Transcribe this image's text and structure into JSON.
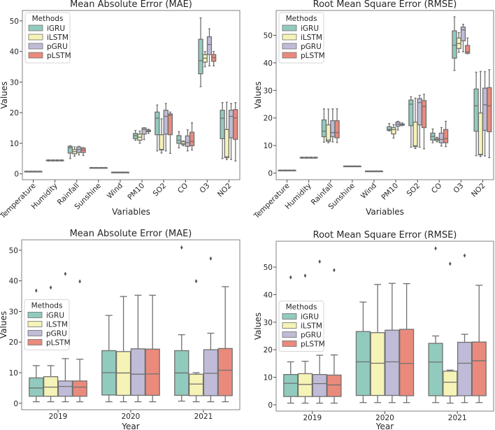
{
  "methods": [
    "iGRU",
    "iLSTM",
    "pGRU",
    "pLSTM"
  ],
  "colors": {
    "iGRU": "#91cbbe",
    "iLSTM": "#f5f3b6",
    "pGRU": "#c0bcd7",
    "pLSTM": "#ea8a7c",
    "line": "#707070",
    "frame": "#808080"
  },
  "chart_data": [
    {
      "type": "box",
      "title": "Mean Absolute Error (MAE)",
      "xlabel": "Variables",
      "ylabel": "Values",
      "ylim": [
        -1.9,
        53.4
      ],
      "yticks": [
        0,
        10,
        20,
        30,
        40,
        50
      ],
      "legend": {
        "title": "Methods",
        "placement": "top-left"
      },
      "rotate_xticks": true,
      "categories": [
        "Temperature",
        "Humidity",
        "Rainfall",
        "Sunshine",
        "Wind",
        "PM10",
        "SO2",
        "CO",
        "O3",
        "NO2"
      ],
      "boxes_format": "[whisker_low, q1, median, q3, whisker_high]",
      "series": [
        {
          "name": "iGRU",
          "boxes": [
            [
              0.7,
              0.75,
              0.8,
              0.85,
              0.9
            ],
            [
              4.2,
              4.3,
              4.4,
              4.5,
              4.6
            ],
            [
              5,
              6.8,
              8.5,
              9,
              9.2
            ],
            [
              1.9,
              1.95,
              2,
              2.05,
              2.1
            ],
            [
              0.4,
              0.45,
              0.5,
              0.55,
              0.6
            ],
            [
              11,
              11.5,
              12.5,
              13.2,
              14.2
            ],
            [
              7.5,
              12.8,
              18.2,
              20.2,
              22.5
            ],
            [
              8.5,
              10,
              11,
              12.5,
              13.8
            ],
            [
              28.5,
              32.7,
              37,
              44,
              51
            ],
            [
              5,
              11.5,
              18.2,
              20.8,
              23.3
            ]
          ]
        },
        {
          "name": "iLSTM",
          "boxes": [
            [
              0.7,
              0.75,
              0.8,
              0.85,
              0.9
            ],
            [
              4.2,
              4.3,
              4.4,
              4.5,
              4.6
            ],
            [
              5.8,
              6.6,
              7.3,
              8,
              8.8
            ],
            [
              1.9,
              1.95,
              2,
              2.05,
              2.1
            ],
            [
              0.4,
              0.45,
              0.5,
              0.55,
              0.6
            ],
            [
              10,
              11,
              12,
              13,
              14
            ],
            [
              6.8,
              7.8,
              8,
              12.8,
              18
            ],
            [
              9.2,
              9.6,
              10,
              10.6,
              10.8
            ],
            [
              35,
              36.5,
              37.8,
              39,
              40
            ],
            [
              4.7,
              5.3,
              5.6,
              14.5,
              23.4
            ]
          ]
        },
        {
          "name": "pGRU",
          "boxes": [
            [
              0.7,
              0.75,
              0.8,
              0.85,
              0.9
            ],
            [
              4.2,
              4.3,
              4.4,
              4.5,
              4.6
            ],
            [
              6.2,
              7,
              8,
              8.8,
              9
            ],
            [
              1.9,
              1.95,
              2,
              2.05,
              2.1
            ],
            [
              0.4,
              0.45,
              0.5,
              0.55,
              0.6
            ],
            [
              11.2,
              13,
              14.5,
              15,
              15.1
            ],
            [
              7.5,
              13,
              18.8,
              20.8,
              23
            ],
            [
              7.5,
              9,
              10.2,
              12.4,
              14.4
            ],
            [
              35.3,
              39,
              42.3,
              44.8,
              47.4
            ],
            [
              4.7,
              11.8,
              18.8,
              20.8,
              23
            ]
          ]
        },
        {
          "name": "pLSTM",
          "boxes": [
            [
              0.7,
              0.75,
              0.8,
              0.85,
              0.9
            ],
            [
              4.2,
              4.3,
              4.4,
              4.5,
              4.6
            ],
            [
              6,
              7,
              7.8,
              8.4,
              8.6
            ],
            [
              1.9,
              1.95,
              2,
              2.05,
              2.1
            ],
            [
              0.4,
              0.45,
              0.5,
              0.55,
              0.6
            ],
            [
              13.2,
              13.8,
              14,
              14.3,
              14.6
            ],
            [
              6.7,
              12.8,
              19.2,
              19.6,
              20.2
            ],
            [
              7.8,
              9.2,
              10.6,
              13.6,
              16.7
            ],
            [
              35.3,
              36.8,
              38,
              39,
              40
            ],
            [
              4.2,
              11.3,
              18.3,
              21,
              23.3
            ]
          ]
        }
      ]
    },
    {
      "type": "box",
      "title": "Root Mean Square Error (RMSE)",
      "xlabel": "Variables",
      "ylabel": "Values",
      "ylim": [
        -2.4,
        59
      ],
      "yticks": [
        0,
        10,
        20,
        30,
        40,
        50
      ],
      "legend": {
        "title": "Methods",
        "placement": "top-left"
      },
      "rotate_xticks": true,
      "categories": [
        "Temperature",
        "Humidity",
        "Rainfall",
        "Sunshine",
        "Wind",
        "PM10",
        "SO2",
        "CO",
        "O3",
        "NO2"
      ],
      "boxes_format": "[whisker_low, q1, median, q3, whisker_high]",
      "series": [
        {
          "name": "iGRU",
          "boxes": [
            [
              0.9,
              0.95,
              1,
              1.05,
              1.1
            ],
            [
              5.4,
              5.5,
              5.6,
              5.7,
              5.8
            ],
            [
              11.2,
              13.2,
              15.2,
              19.3,
              23.3
            ],
            [
              2.4,
              2.45,
              2.5,
              2.55,
              2.6
            ],
            [
              0.6,
              0.65,
              0.7,
              0.75,
              0.8
            ],
            [
              15.3,
              15.5,
              15.8,
              16.8,
              18
            ],
            [
              9.4,
              17.2,
              25,
              26.5,
              27.7
            ],
            [
              11,
              12,
              13.3,
              14.5,
              16
            ],
            [
              37.2,
              41.7,
              46.4,
              51.6,
              56.7
            ],
            [
              6.3,
              15.2,
              24.4,
              30.5,
              36.6
            ]
          ]
        },
        {
          "name": "iLSTM",
          "boxes": [
            [
              0.9,
              0.95,
              1,
              1.05,
              1.1
            ],
            [
              5.4,
              5.5,
              5.6,
              5.7,
              5.8
            ],
            [
              11,
              11.5,
              12,
              17.5,
              23.2
            ],
            [
              2.4,
              2.45,
              2.5,
              2.55,
              2.6
            ],
            [
              0.6,
              0.65,
              0.7,
              0.75,
              0.8
            ],
            [
              12.7,
              14.2,
              15.8,
              16.5,
              17.6
            ],
            [
              8.9,
              9.6,
              9.9,
              18.5,
              27.2
            ],
            [
              11.3,
              11.8,
              12.2,
              12.6,
              13
            ],
            [
              43.8,
              45.2,
              47,
              49,
              51
            ],
            [
              6,
              6.6,
              6.8,
              21.8,
              36.9
            ]
          ]
        },
        {
          "name": "pGRU",
          "boxes": [
            [
              0.9,
              0.95,
              1,
              1.05,
              1.1
            ],
            [
              5.4,
              5.5,
              5.6,
              5.7,
              5.8
            ],
            [
              11.3,
              13.2,
              14.7,
              19,
              23.3
            ],
            [
              2.4,
              2.45,
              2.5,
              2.55,
              2.6
            ],
            [
              0.6,
              0.65,
              0.7,
              0.75,
              0.8
            ],
            [
              15.6,
              17,
              17.7,
              18.5,
              18.8
            ],
            [
              9.4,
              17.5,
              25.6,
              27,
              28.2
            ],
            [
              9.8,
              11,
              12.2,
              14.5,
              16.5
            ],
            [
              44,
              48,
              52,
              53,
              54
            ],
            [
              6.2,
              15.5,
              24.8,
              30.8,
              36.8
            ]
          ]
        },
        {
          "name": "pLSTM",
          "boxes": [
            [
              0.9,
              0.95,
              1,
              1.05,
              1.1
            ],
            [
              5.4,
              5.5,
              5.6,
              5.7,
              5.8
            ],
            [
              11.1,
              12.8,
              14.7,
              19,
              23.3
            ],
            [
              2.4,
              2.45,
              2.5,
              2.55,
              2.6
            ],
            [
              0.6,
              0.65,
              0.7,
              0.75,
              0.8
            ],
            [
              17.2,
              17.4,
              17.6,
              17.8,
              18.2
            ],
            [
              8.8,
              16.5,
              24.2,
              26.3,
              28.6
            ],
            [
              9.6,
              11,
              12.5,
              15.8,
              18.8
            ],
            [
              43.3,
              43.5,
              44,
              46.3,
              49
            ],
            [
              5.6,
              15,
              24.4,
              31,
              37.5
            ]
          ]
        }
      ]
    },
    {
      "type": "box",
      "title": "Mean Absolute Error (MAE)",
      "xlabel": "Year",
      "ylabel": "Values",
      "ylim": [
        -2.1,
        53.4
      ],
      "yticks": [
        0,
        10,
        20,
        30,
        40,
        50
      ],
      "legend": {
        "title": "Methods",
        "placement": "center-left"
      },
      "rotate_xticks": false,
      "categories": [
        "2019",
        "2020",
        "2021"
      ],
      "boxes_format": "[whisker_low, q1, median, q3, whisker_high]",
      "series": [
        {
          "name": "iGRU",
          "boxes": [
            [
              0.5,
              2.3,
              5,
              8.3,
              12.3
            ],
            [
              0.5,
              2.7,
              10,
              17.2,
              28.7
            ],
            [
              0.7,
              2.6,
              9.9,
              17.2,
              22.4
            ]
          ],
          "outliers": [
            [
              36.8
            ],
            [],
            [
              50.9
            ]
          ]
        },
        {
          "name": "iLSTM",
          "boxes": [
            [
              0.5,
              2.3,
              5.3,
              8.7,
              12.3
            ],
            [
              0.5,
              2.6,
              9.9,
              16.9,
              34.9
            ],
            [
              0.5,
              2.5,
              6.3,
              9.5,
              10
            ]
          ],
          "outliers": [
            [
              37.8
            ],
            [],
            [
              39.9
            ]
          ]
        },
        {
          "name": "pGRU",
          "boxes": [
            [
              0.5,
              2.3,
              5.5,
              7.3,
              14.6
            ],
            [
              0.5,
              2.6,
              9.5,
              17.8,
              35.3
            ],
            [
              0.5,
              2.5,
              9.8,
              17.5,
              22.9
            ]
          ],
          "outliers": [
            [
              42.3
            ],
            [],
            [
              47.3
            ]
          ]
        },
        {
          "name": "pLSTM",
          "boxes": [
            [
              0.5,
              2.3,
              5.3,
              7.3,
              14.4
            ],
            [
              0.5,
              2.6,
              9.6,
              17.7,
              35.3
            ],
            [
              0.5,
              2.5,
              10.8,
              17.9,
              38.1
            ]
          ],
          "outliers": [
            [
              39.8
            ],
            [],
            []
          ]
        }
      ]
    },
    {
      "type": "box",
      "title": "Root Mean Square Error (RMSE)",
      "xlabel": "Year",
      "ylabel": "Values",
      "ylim": [
        -2.3,
        59.4
      ],
      "yticks": [
        0,
        10,
        20,
        30,
        40,
        50
      ],
      "legend": {
        "title": "Methods",
        "placement": "center-left"
      },
      "rotate_xticks": false,
      "categories": [
        "2019",
        "2020",
        "2021"
      ],
      "boxes_format": "[whisker_low, q1, median, q3, whisker_high]",
      "series": [
        {
          "name": "iGRU",
          "boxes": [
            [
              0.6,
              3,
              7.8,
              11,
              15.6
            ],
            [
              0.8,
              3.4,
              15.6,
              26.6,
              37.3
            ],
            [
              0.8,
              3.3,
              15.5,
              22.3,
              25
            ]
          ],
          "outliers": [
            [
              46.3
            ],
            [],
            [
              56.8
            ]
          ]
        },
        {
          "name": "iLSTM",
          "boxes": [
            [
              0.6,
              3,
              7.4,
              11.3,
              15.8
            ],
            [
              0.8,
              3.4,
              15.1,
              26.2,
              43.7
            ],
            [
              0.6,
              3.2,
              8.2,
              12.2,
              12.6
            ]
          ],
          "outliers": [
            [
              46.9
            ],
            [],
            [
              51.2
            ]
          ]
        },
        {
          "name": "pGRU",
          "boxes": [
            [
              0.6,
              3,
              7.7,
              11,
              18
            ],
            [
              0.8,
              3.4,
              15.6,
              27.1,
              44.1
            ],
            [
              0.8,
              3.3,
              15.1,
              22.7,
              25.6
            ]
          ],
          "outliers": [
            [
              52
            ],
            [],
            [
              54.2
            ]
          ]
        },
        {
          "name": "pLSTM",
          "boxes": [
            [
              0.6,
              3,
              7.2,
              10.8,
              18.1
            ],
            [
              0.8,
              3.3,
              15,
              27.4,
              44
            ],
            [
              0.8,
              3.3,
              16,
              22.8,
              43.4
            ]
          ],
          "outliers": [
            [
              48.9
            ],
            [],
            []
          ]
        }
      ]
    }
  ]
}
